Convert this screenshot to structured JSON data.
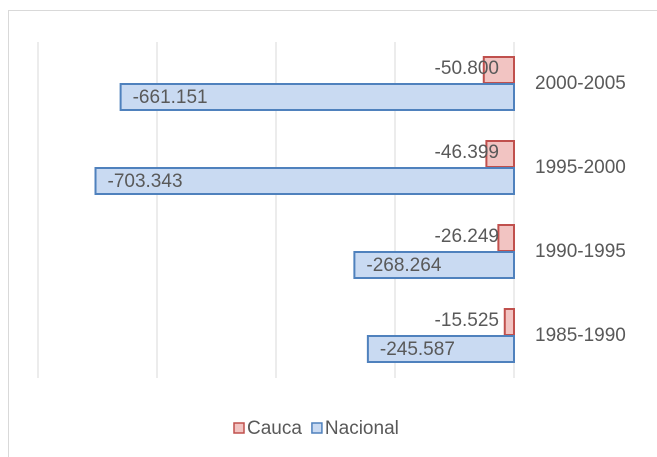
{
  "chart_data": {
    "type": "bar",
    "orientation": "horizontal",
    "categories": [
      "2000-2005",
      "1995-2000",
      "1990-1995",
      "1985-1990"
    ],
    "series": [
      {
        "name": "Cauca",
        "color": "#f2c4c2",
        "edge": "#c0504d",
        "values": [
          -50800,
          -46399,
          -26249,
          -15525
        ],
        "value_labels": [
          "-50.800",
          "-46.399",
          "-26.249",
          "-15.525"
        ]
      },
      {
        "name": "Nacional",
        "color": "#c9daf2",
        "edge": "#4f81bd",
        "values": [
          -661151,
          -703343,
          -268264,
          -245587
        ],
        "value_labels": [
          "-661.151",
          "-703.343",
          "-268.264",
          "-245.587"
        ]
      }
    ],
    "xlim": [
      -800000,
      0
    ],
    "xticks": [
      -800000,
      -600000,
      -400000,
      -200000,
      0
    ],
    "grid": true,
    "legend": "bottom"
  }
}
